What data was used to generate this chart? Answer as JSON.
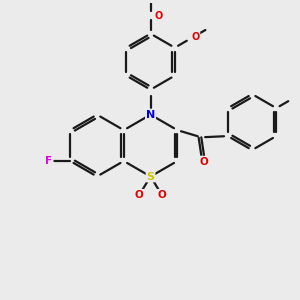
{
  "background_color": "#ebebeb",
  "bond_color": "#1a1a1a",
  "atom_colors": {
    "S": "#c8c800",
    "N": "#0000e0",
    "O": "#e00000",
    "F": "#e000e0"
  },
  "figsize": [
    3.0,
    3.0
  ],
  "dpi": 100
}
